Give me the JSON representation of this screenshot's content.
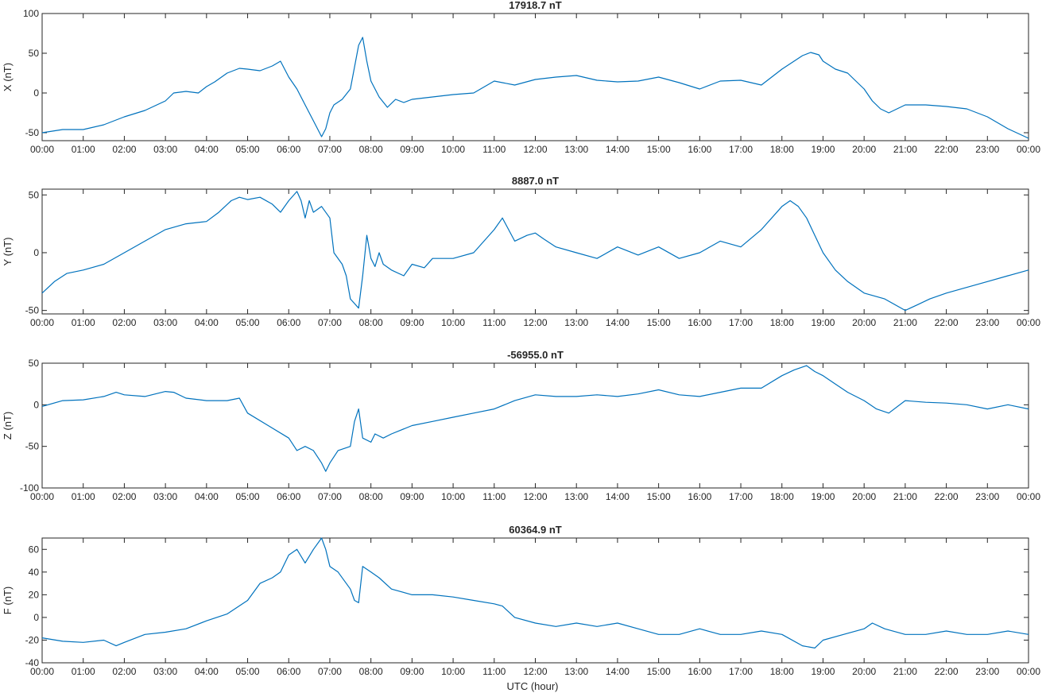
{
  "figure": {
    "xlabel": "UTC (hour)",
    "line_color": "#0072BD"
  },
  "chart_data": [
    {
      "type": "line",
      "title": "17918.7 nT",
      "xlabel": "",
      "ylabel": "X (nT)",
      "xlim": [
        0,
        24
      ],
      "ylim": [
        -60,
        100
      ],
      "yticks": [
        -50,
        0,
        50,
        100
      ],
      "xtick_labels": [
        "00:00",
        "01:00",
        "02:00",
        "03:00",
        "04:00",
        "05:00",
        "06:00",
        "07:00",
        "08:00",
        "09:00",
        "10:00",
        "11:00",
        "12:00",
        "13:00",
        "14:00",
        "15:00",
        "16:00",
        "17:00",
        "18:00",
        "19:00",
        "20:00",
        "21:00",
        "22:00",
        "23:00",
        "00:00"
      ],
      "grid": false,
      "series": [
        {
          "x": [
            0,
            0.5,
            1,
            1.5,
            2,
            2.5,
            3,
            3.2,
            3.5,
            3.8,
            4,
            4.2,
            4.5,
            4.8,
            5,
            5.3,
            5.6,
            5.8,
            6,
            6.2,
            6.4,
            6.6,
            6.8,
            6.9,
            7,
            7.1,
            7.3,
            7.5,
            7.7,
            7.8,
            7.9,
            8,
            8.2,
            8.4,
            8.6,
            8.8,
            9,
            9.5,
            10,
            10.5,
            11,
            11.5,
            12,
            12.5,
            13,
            13.5,
            14,
            14.5,
            15,
            15.5,
            16,
            16.5,
            17,
            17.5,
            18,
            18.5,
            18.7,
            18.9,
            19,
            19.3,
            19.6,
            19.8,
            20,
            20.2,
            20.4,
            20.6,
            21,
            21.5,
            22,
            22.5,
            23,
            23.5,
            24
          ],
          "y": [
            -50,
            -46,
            -46,
            -40,
            -30,
            -22,
            -10,
            0,
            2,
            0,
            8,
            14,
            25,
            31,
            30,
            28,
            34,
            40,
            20,
            5,
            -15,
            -35,
            -55,
            -45,
            -25,
            -15,
            -8,
            5,
            60,
            70,
            40,
            15,
            -5,
            -18,
            -8,
            -12,
            -8,
            -5,
            -2,
            0,
            15,
            10,
            17,
            20,
            22,
            16,
            14,
            15,
            20,
            13,
            5,
            15,
            16,
            10,
            30,
            47,
            51,
            48,
            40,
            30,
            25,
            15,
            5,
            -10,
            -20,
            -25,
            -15,
            -15,
            -17,
            -20,
            -30,
            -45,
            -57
          ]
        }
      ]
    },
    {
      "type": "line",
      "title": "8887.0 nT",
      "xlabel": "",
      "ylabel": "Y (nT)",
      "xlim": [
        0,
        24
      ],
      "ylim": [
        -53,
        55
      ],
      "yticks": [
        -50,
        0,
        50
      ],
      "xtick_labels": [
        "00:00",
        "01:00",
        "02:00",
        "03:00",
        "04:00",
        "05:00",
        "06:00",
        "07:00",
        "08:00",
        "09:00",
        "10:00",
        "11:00",
        "12:00",
        "13:00",
        "14:00",
        "15:00",
        "16:00",
        "17:00",
        "18:00",
        "19:00",
        "20:00",
        "21:00",
        "22:00",
        "23:00",
        "00:00"
      ],
      "grid": false,
      "series": [
        {
          "x": [
            0,
            0.3,
            0.6,
            1,
            1.5,
            2,
            2.5,
            3,
            3.5,
            4,
            4.3,
            4.6,
            4.8,
            5,
            5.3,
            5.6,
            5.8,
            6,
            6.2,
            6.3,
            6.4,
            6.5,
            6.6,
            6.8,
            7,
            7.1,
            7.3,
            7.4,
            7.5,
            7.7,
            7.8,
            7.9,
            8,
            8.1,
            8.2,
            8.3,
            8.5,
            8.8,
            9,
            9.3,
            9.5,
            10,
            10.5,
            11,
            11.2,
            11.5,
            11.8,
            12,
            12.2,
            12.5,
            13,
            13.5,
            14,
            14.5,
            15,
            15.5,
            16,
            16.5,
            17,
            17.5,
            18,
            18.2,
            18.4,
            18.6,
            18.8,
            19,
            19.3,
            19.6,
            20,
            20.5,
            21,
            21.3,
            21.6,
            22,
            22.5,
            23,
            23.5,
            24
          ],
          "y": [
            -35,
            -25,
            -18,
            -15,
            -10,
            0,
            10,
            20,
            25,
            27,
            35,
            45,
            48,
            46,
            48,
            42,
            35,
            45,
            53,
            45,
            30,
            45,
            35,
            40,
            30,
            0,
            -10,
            -20,
            -40,
            -48,
            -20,
            15,
            -5,
            -12,
            0,
            -10,
            -15,
            -20,
            -10,
            -13,
            -5,
            -5,
            0,
            20,
            30,
            10,
            15,
            17,
            12,
            5,
            0,
            -5,
            5,
            -2,
            5,
            -5,
            0,
            10,
            5,
            20,
            40,
            45,
            40,
            30,
            15,
            0,
            -15,
            -25,
            -35,
            -40,
            -50,
            -45,
            -40,
            -35,
            -30,
            -25,
            -20,
            -15
          ]
        }
      ]
    },
    {
      "type": "line",
      "title": "-56955.0 nT",
      "xlabel": "",
      "ylabel": "Z (nT)",
      "xlim": [
        0,
        24
      ],
      "ylim": [
        -100,
        50
      ],
      "yticks": [
        -100,
        -50,
        0,
        50
      ],
      "xtick_labels": [
        "00:00",
        "01:00",
        "02:00",
        "03:00",
        "04:00",
        "05:00",
        "06:00",
        "07:00",
        "08:00",
        "09:00",
        "10:00",
        "11:00",
        "12:00",
        "13:00",
        "14:00",
        "15:00",
        "16:00",
        "17:00",
        "18:00",
        "19:00",
        "20:00",
        "21:00",
        "22:00",
        "23:00",
        "00:00"
      ],
      "grid": false,
      "series": [
        {
          "x": [
            0,
            0.5,
            1,
            1.5,
            1.8,
            2,
            2.5,
            3,
            3.2,
            3.5,
            4,
            4.5,
            4.8,
            5,
            5.5,
            6,
            6.2,
            6.4,
            6.6,
            6.8,
            6.9,
            7,
            7.2,
            7.5,
            7.6,
            7.7,
            7.8,
            8,
            8.1,
            8.3,
            8.5,
            9,
            9.5,
            10,
            10.5,
            11,
            11.5,
            12,
            12.5,
            13,
            13.5,
            14,
            14.5,
            15,
            15.5,
            16,
            16.5,
            17,
            17.5,
            18,
            18.3,
            18.6,
            18.8,
            19,
            19.3,
            19.6,
            20,
            20.3,
            20.6,
            21,
            21.5,
            22,
            22.5,
            23,
            23.5,
            24
          ],
          "y": [
            -2,
            5,
            6,
            10,
            15,
            12,
            10,
            16,
            15,
            8,
            5,
            5,
            8,
            -10,
            -25,
            -40,
            -55,
            -50,
            -55,
            -70,
            -80,
            -70,
            -55,
            -50,
            -20,
            -5,
            -40,
            -45,
            -35,
            -40,
            -35,
            -25,
            -20,
            -15,
            -10,
            -5,
            5,
            12,
            10,
            10,
            12,
            10,
            13,
            18,
            12,
            10,
            15,
            20,
            20,
            35,
            42,
            47,
            40,
            35,
            25,
            15,
            5,
            -5,
            -10,
            5,
            3,
            2,
            0,
            -5,
            0,
            -5
          ]
        }
      ]
    },
    {
      "type": "line",
      "title": "60364.9 nT",
      "xlabel": "UTC (hour)",
      "ylabel": "F (nT)",
      "xlim": [
        0,
        24
      ],
      "ylim": [
        -40,
        70
      ],
      "yticks": [
        -40,
        -20,
        0,
        20,
        40,
        60
      ],
      "xtick_labels": [
        "00:00",
        "01:00",
        "02:00",
        "03:00",
        "04:00",
        "05:00",
        "06:00",
        "07:00",
        "08:00",
        "09:00",
        "10:00",
        "11:00",
        "12:00",
        "13:00",
        "14:00",
        "15:00",
        "16:00",
        "17:00",
        "18:00",
        "19:00",
        "20:00",
        "21:00",
        "22:00",
        "23:00",
        "00:00"
      ],
      "grid": false,
      "series": [
        {
          "x": [
            0,
            0.5,
            1,
            1.5,
            1.8,
            2,
            2.5,
            3,
            3.5,
            4,
            4.5,
            5,
            5.3,
            5.6,
            5.8,
            6,
            6.2,
            6.4,
            6.6,
            6.8,
            6.9,
            7,
            7.2,
            7.5,
            7.6,
            7.7,
            7.8,
            8,
            8.2,
            8.5,
            9,
            9.5,
            10,
            10.5,
            11,
            11.2,
            11.5,
            12,
            12.5,
            13,
            13.5,
            14,
            14.5,
            15,
            15.5,
            16,
            16.5,
            17,
            17.5,
            18,
            18.5,
            18.8,
            19,
            19.5,
            20,
            20.2,
            20.5,
            21,
            21.5,
            22,
            22.5,
            23,
            23.5,
            24
          ],
          "y": [
            -18,
            -21,
            -22,
            -20,
            -25,
            -22,
            -15,
            -13,
            -10,
            -3,
            3,
            15,
            30,
            35,
            40,
            55,
            60,
            48,
            60,
            70,
            60,
            45,
            40,
            25,
            15,
            13,
            45,
            40,
            35,
            25,
            20,
            20,
            18,
            15,
            12,
            10,
            0,
            -5,
            -8,
            -5,
            -8,
            -5,
            -10,
            -15,
            -15,
            -10,
            -15,
            -15,
            -12,
            -15,
            -25,
            -27,
            -20,
            -15,
            -10,
            -5,
            -10,
            -15,
            -15,
            -12,
            -15,
            -15,
            -12,
            -15
          ]
        }
      ]
    }
  ]
}
